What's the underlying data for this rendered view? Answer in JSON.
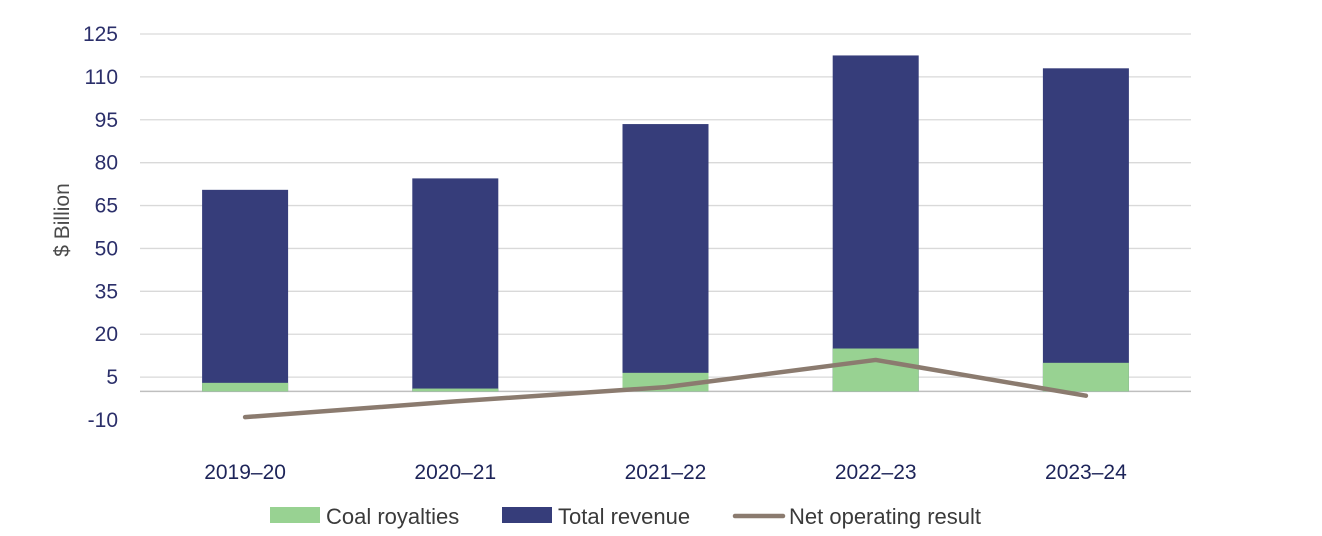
{
  "chart_data": {
    "type": "bar",
    "stacked": true,
    "categories": [
      "2019–20",
      "2020–21",
      "2021–22",
      "2022–23",
      "2023–24"
    ],
    "ylabel": "$ Billion",
    "ylim": [
      -10,
      125
    ],
    "yticks": [
      "125",
      "110",
      "95",
      "80",
      "65",
      "50",
      "35",
      "20",
      "5",
      "-10"
    ],
    "ytick_values": [
      125,
      110,
      95,
      80,
      65,
      50,
      35,
      20,
      5,
      -10
    ],
    "grid": true,
    "legend_position": "bottom",
    "series": [
      {
        "name": "Coal royalties",
        "kind": "bar",
        "color": "#98d292",
        "values": [
          3.0,
          1.0,
          6.5,
          15.0,
          10.0
        ]
      },
      {
        "name": "Total revenue",
        "kind": "bar",
        "color": "#363d7a",
        "values": [
          70.5,
          74.5,
          93.5,
          117.5,
          113.0
        ]
      },
      {
        "name": "Net operating result",
        "kind": "line",
        "color": "#8b7b6f",
        "values": [
          -9.0,
          -3.5,
          1.5,
          11.0,
          -1.5
        ]
      }
    ]
  }
}
